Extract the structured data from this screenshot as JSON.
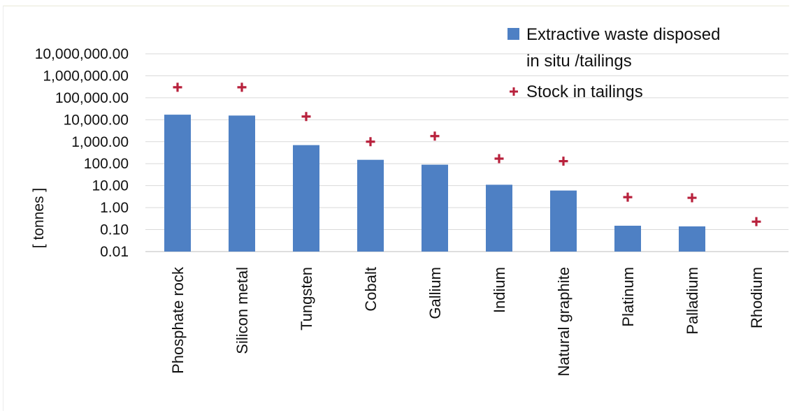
{
  "chart_data": {
    "type": "bar",
    "title": "",
    "xlabel": "",
    "ylabel": "[ tonnes ]",
    "scale": "log",
    "ylim": [
      0.01,
      10000000
    ],
    "yticks": [
      "10,000,000.00",
      "1,000,000.00",
      "100,000.00",
      "10,000.00",
      "1,000.00",
      "100.00",
      "10.00",
      "1.00",
      "0.10",
      "0.01"
    ],
    "categories": [
      "Phosphate rock",
      "Silicon metal",
      "Tungsten",
      "Cobalt",
      "Gallium",
      "Indium",
      "Natural graphite",
      "Platinum",
      "Palladium",
      "Rhodium"
    ],
    "series": [
      {
        "name": "Extractive waste disposed in situ /tailings",
        "name_lines": [
          "Extractive waste disposed",
          "in situ /tailings"
        ],
        "kind": "bar",
        "color": "#4e80c4",
        "values": [
          17000,
          15500,
          700,
          150,
          90,
          11,
          6,
          0.15,
          0.14,
          null
        ]
      },
      {
        "name": "Stock in tailings",
        "name_lines": [
          "Stock in tailings"
        ],
        "kind": "marker",
        "marker": "plus",
        "color": "#b8213c",
        "values": [
          300000,
          300000,
          14000,
          1000,
          1800,
          170,
          130,
          3,
          2.8,
          0.23
        ]
      }
    ],
    "grid": true,
    "legend": "top-right"
  }
}
